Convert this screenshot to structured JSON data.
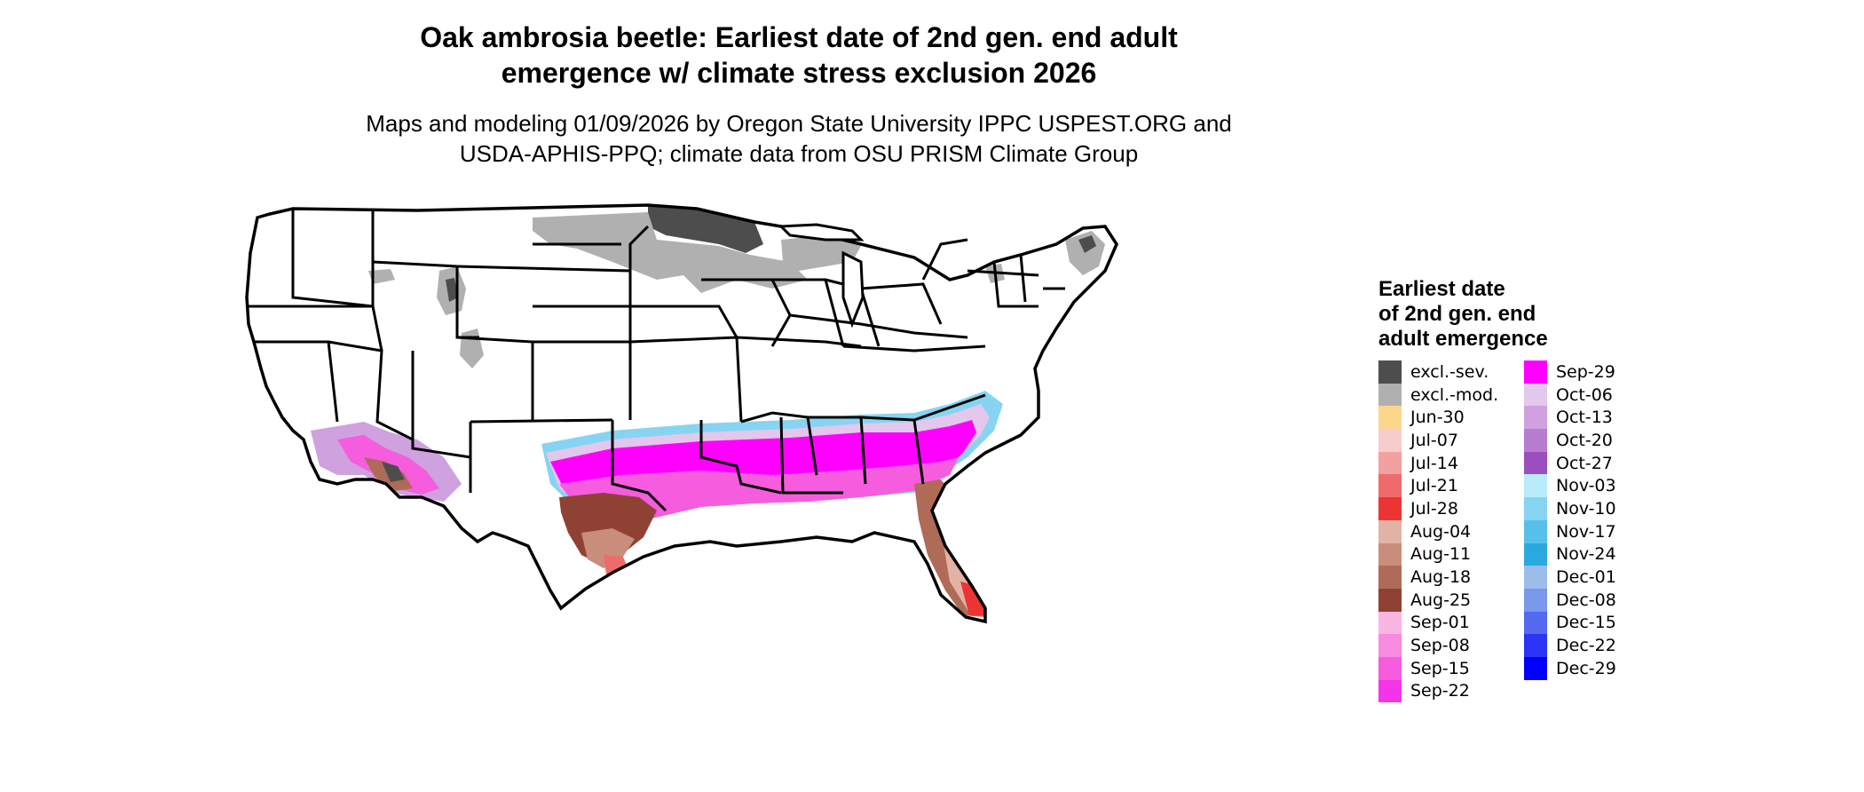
{
  "title": "Oak ambrosia beetle: Earliest date of 2nd gen. end adult\nemergence w/ climate stress exclusion 2026",
  "subtitle": "Maps and modeling 01/09/2026 by Oregon State University IPPC USPEST.ORG and\nUSDA-APHIS-PPQ; climate data from OSU PRISM Climate Group",
  "legend": {
    "title": "Earliest date\nof 2nd gen. end\nadult emergence",
    "items": [
      {
        "label": "excl.-sev.",
        "color": "#4d4d4d"
      },
      {
        "label": "excl.-mod.",
        "color": "#b0b0b0"
      },
      {
        "label": "Jun-30",
        "color": "#fdd68e"
      },
      {
        "label": "Jul-07",
        "color": "#f6cccc"
      },
      {
        "label": "Jul-14",
        "color": "#f3a0a0"
      },
      {
        "label": "Jul-21",
        "color": "#ef6b6b"
      },
      {
        "label": "Jul-28",
        "color": "#ec3434"
      },
      {
        "label": "Aug-04",
        "color": "#e0b3a5"
      },
      {
        "label": "Aug-11",
        "color": "#c98d7c"
      },
      {
        "label": "Aug-18",
        "color": "#b06a58"
      },
      {
        "label": "Aug-25",
        "color": "#8f4234"
      },
      {
        "label": "Sep-01",
        "color": "#f9b6e3"
      },
      {
        "label": "Sep-08",
        "color": "#f88ae0"
      },
      {
        "label": "Sep-15",
        "color": "#f65cde"
      },
      {
        "label": "Sep-22",
        "color": "#f434e8"
      },
      {
        "label": "Sep-29",
        "color": "#ff00ff"
      },
      {
        "label": "Oct-06",
        "color": "#e3c7ec"
      },
      {
        "label": "Oct-13",
        "color": "#cfa1df"
      },
      {
        "label": "Oct-20",
        "color": "#b87dd0"
      },
      {
        "label": "Oct-27",
        "color": "#9b4fbd"
      },
      {
        "label": "Nov-03",
        "color": "#b8ecfc"
      },
      {
        "label": "Nov-10",
        "color": "#86d4f2"
      },
      {
        "label": "Nov-17",
        "color": "#57c0ea"
      },
      {
        "label": "Nov-24",
        "color": "#2aa9de"
      },
      {
        "label": "Dec-01",
        "color": "#9cbde9"
      },
      {
        "label": "Dec-08",
        "color": "#7a98ec"
      },
      {
        "label": "Dec-15",
        "color": "#5468f0"
      },
      {
        "label": "Dec-22",
        "color": "#2c34f6"
      },
      {
        "label": "Dec-29",
        "color": "#0000ff"
      }
    ]
  }
}
